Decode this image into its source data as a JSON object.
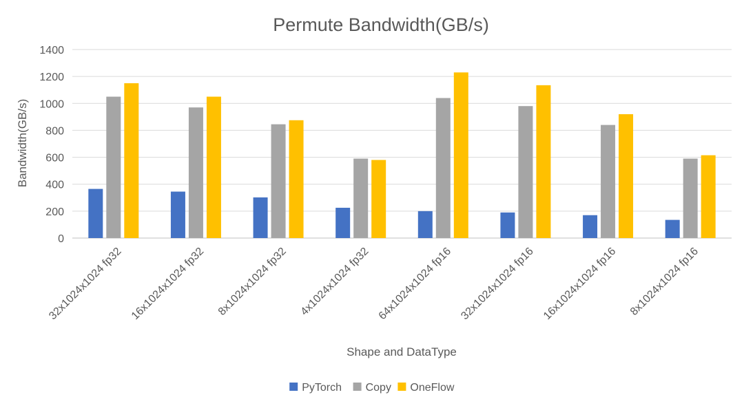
{
  "chart_data": {
    "type": "bar",
    "title": "Permute Bandwidth(GB/s)",
    "xlabel": "Shape and DataType",
    "ylabel": "Bandwidth(GB/s)",
    "ylim": [
      0,
      1400
    ],
    "yticks": [
      0,
      200,
      400,
      600,
      800,
      1000,
      1200,
      1400
    ],
    "grid": true,
    "legend_position": "bottom",
    "categories": [
      "32x1024x1024 fp32",
      "16x1024x1024 fp32",
      "8x1024x1024 fp32",
      "4x1024x1024 fp32",
      "64x1024x1024 fp16",
      "32x1024x1024 fp16",
      "16x1024x1024 fp16",
      "8x1024x1024 fp16"
    ],
    "series": [
      {
        "name": "PyTorch",
        "color": "#4472c4",
        "values": [
          365,
          345,
          302,
          225,
          200,
          190,
          170,
          135
        ]
      },
      {
        "name": "Copy",
        "color": "#a5a5a5",
        "values": [
          1050,
          970,
          845,
          590,
          1040,
          980,
          840,
          590
        ]
      },
      {
        "name": "OneFlow",
        "color": "#ffc000",
        "values": [
          1150,
          1050,
          875,
          580,
          1230,
          1135,
          920,
          615
        ]
      }
    ]
  }
}
